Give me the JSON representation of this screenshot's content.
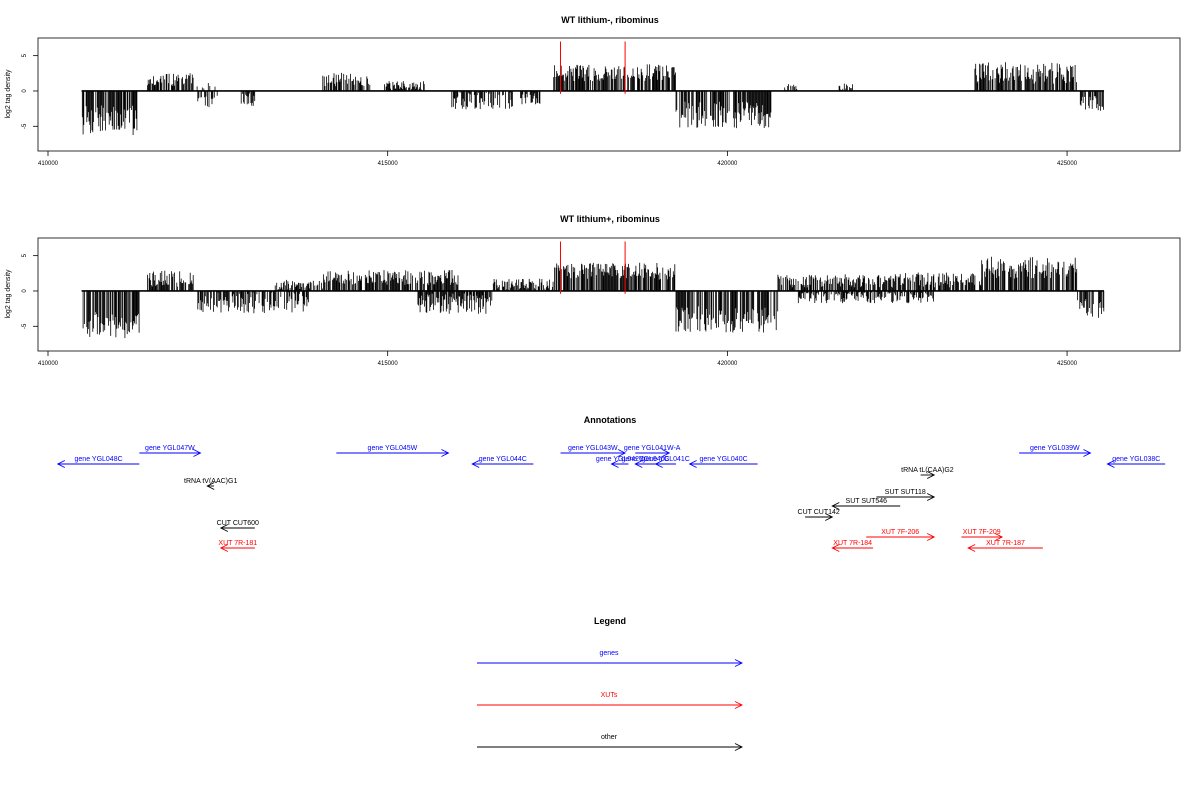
{
  "colors": {
    "genes": "#0000ff",
    "xuts": "#ff0000",
    "other": "#000000",
    "highlight": "#ff0000"
  },
  "chart_data": [
    {
      "type": "bar",
      "title": "WT lithium-, ribominus",
      "ylabel": "log2 tag density",
      "xlim": [
        410000,
        426000
      ],
      "ylim": [
        -8.5,
        7.5
      ],
      "xticks": [
        "410000",
        "415000",
        "420000",
        "425000"
      ],
      "xtick_values": [
        410000,
        415000,
        420000,
        425000
      ],
      "yticks": [
        "-5",
        "0",
        "5"
      ],
      "ytick_values": [
        -5,
        0,
        5
      ],
      "highlight_positions": [
        417500,
        418450
      ],
      "highlight_height": 7,
      "profile": [
        [
          410450,
          411300,
          -4.2,
          1.8
        ],
        [
          411420,
          412100,
          1.6,
          0.8
        ],
        [
          412150,
          412450,
          -0.6,
          1.5
        ],
        [
          412800,
          413000,
          -1.2,
          0.8
        ],
        [
          414000,
          414700,
          1.6,
          0.8
        ],
        [
          414900,
          415500,
          0.8,
          0.5
        ],
        [
          415900,
          416800,
          -1.4,
          1.0
        ],
        [
          416900,
          417200,
          -1.0,
          0.8
        ],
        [
          417400,
          419200,
          2.6,
          1.0
        ],
        [
          419200,
          420600,
          -3.4,
          1.6
        ],
        [
          420800,
          421000,
          0.6,
          0.4
        ],
        [
          421600,
          421800,
          0.6,
          0.4
        ],
        [
          423600,
          425100,
          2.6,
          1.3
        ],
        [
          425150,
          425500,
          -1.8,
          1.0
        ]
      ]
    },
    {
      "type": "bar",
      "title": "WT lithium+, ribominus",
      "ylabel": "log2 tag density",
      "xlim": [
        410000,
        426000
      ],
      "ylim": [
        -8.5,
        7.5
      ],
      "xticks": [
        "410000",
        "415000",
        "420000",
        "425000"
      ],
      "xtick_values": [
        410000,
        415000,
        420000,
        425000
      ],
      "yticks": [
        "-5",
        "0",
        "5"
      ],
      "ytick_values": [
        -5,
        0,
        5
      ],
      "highlight_positions": [
        417500,
        418450
      ],
      "highlight_height": 7,
      "profile": [
        [
          410450,
          411300,
          -4.8,
          1.6
        ],
        [
          411400,
          412100,
          1.8,
          1.0
        ],
        [
          412150,
          413800,
          -1.6,
          1.3
        ],
        [
          413300,
          414000,
          0.9,
          0.6
        ],
        [
          414000,
          416000,
          1.9,
          0.9
        ],
        [
          415400,
          416500,
          -1.8,
          1.2
        ],
        [
          416500,
          417400,
          1.0,
          0.7
        ],
        [
          417400,
          419200,
          2.8,
          1.0
        ],
        [
          419200,
          420700,
          -4.0,
          1.6
        ],
        [
          420700,
          422500,
          1.4,
          0.8
        ],
        [
          421000,
          423000,
          -0.9,
          0.7
        ],
        [
          422500,
          423700,
          1.6,
          0.9
        ],
        [
          423700,
          425100,
          3.3,
          1.3
        ],
        [
          425100,
          425500,
          -2.4,
          1.2
        ]
      ]
    },
    {
      "type": "annotation_track",
      "title": "Annotations",
      "xlim": [
        410000,
        426000
      ],
      "features": [
        {
          "label": "gene YGL048C",
          "start": 410100,
          "end": 411300,
          "strand": "-",
          "kind": "gene",
          "row": 2
        },
        {
          "label": "gene YGL047W",
          "start": 411300,
          "end": 412200,
          "strand": "+",
          "kind": "gene",
          "row": 1
        },
        {
          "label": "gene YGL045W",
          "start": 414200,
          "end": 415850,
          "strand": "+",
          "kind": "gene",
          "row": 1
        },
        {
          "label": "gene YGL044C",
          "start": 416200,
          "end": 417100,
          "strand": "-",
          "kind": "gene",
          "row": 2
        },
        {
          "label": "gene YGL043W",
          "start": 417500,
          "end": 418450,
          "strand": "+",
          "kind": "gene",
          "row": 1
        },
        {
          "label": "gene YGL042C",
          "start": 418250,
          "end": 418500,
          "strand": "-",
          "kind": "gene",
          "row": 2
        },
        {
          "label": "gene YGL041W-A",
          "start": 418600,
          "end": 419100,
          "strand": "+",
          "kind": "gene",
          "row": 1
        },
        {
          "label": "gene YGL040C",
          "start": 418600,
          "end": 418900,
          "strand": "-",
          "kind": "gene",
          "row": 2
        },
        {
          "label": "gene YGL041C",
          "start": 418900,
          "end": 419200,
          "strand": "-",
          "kind": "gene",
          "row": 2
        },
        {
          "label": "gene YGL040C",
          "start": 419400,
          "end": 420400,
          "strand": "-",
          "kind": "gene",
          "row": 2
        },
        {
          "label": "tRNA tL(CAA)G2",
          "start": 422800,
          "end": 423000,
          "strand": "+",
          "kind": "other",
          "row": 3
        },
        {
          "label": "gene YGL039W",
          "start": 424250,
          "end": 425300,
          "strand": "+",
          "kind": "gene",
          "row": 1
        },
        {
          "label": "gene YGL038C",
          "start": 425550,
          "end": 426400,
          "strand": "-",
          "kind": "gene",
          "row": 2
        },
        {
          "label": "tRNA tV(AAC)G1",
          "start": 412300,
          "end": 412400,
          "strand": "-",
          "kind": "other",
          "row": 4
        },
        {
          "label": "SUT SUT118",
          "start": 422150,
          "end": 423000,
          "strand": "+",
          "kind": "other",
          "row": 5
        },
        {
          "label": "SUT SUT546",
          "start": 421500,
          "end": 422500,
          "strand": "-",
          "kind": "other",
          "row": 6
        },
        {
          "label": "CUT CUT142",
          "start": 421100,
          "end": 421500,
          "strand": "+",
          "kind": "other",
          "row": 7
        },
        {
          "label": "CUT CUT600",
          "start": 412500,
          "end": 413000,
          "strand": "-",
          "kind": "other",
          "row": 8
        },
        {
          "label": "XUT 7F-206",
          "start": 422000,
          "end": 423000,
          "strand": "+",
          "kind": "xut",
          "row": 9
        },
        {
          "label": "XUT 7F-209",
          "start": 423400,
          "end": 424000,
          "strand": "+",
          "kind": "xut",
          "row": 9
        },
        {
          "label": "XUT 7R-184",
          "start": 421500,
          "end": 422100,
          "strand": "-",
          "kind": "xut",
          "row": 10
        },
        {
          "label": "XUT 7R-187",
          "start": 423500,
          "end": 424600,
          "strand": "-",
          "kind": "xut",
          "row": 10
        },
        {
          "label": "XUT 7R-181",
          "start": 412500,
          "end": 413000,
          "strand": "-",
          "kind": "xut",
          "row": 10
        }
      ]
    },
    {
      "type": "legend",
      "title": "Legend",
      "entries": [
        {
          "label": "genes",
          "kind": "gene"
        },
        {
          "label": "XUTs",
          "kind": "xut"
        },
        {
          "label": "other",
          "kind": "other"
        }
      ]
    }
  ]
}
